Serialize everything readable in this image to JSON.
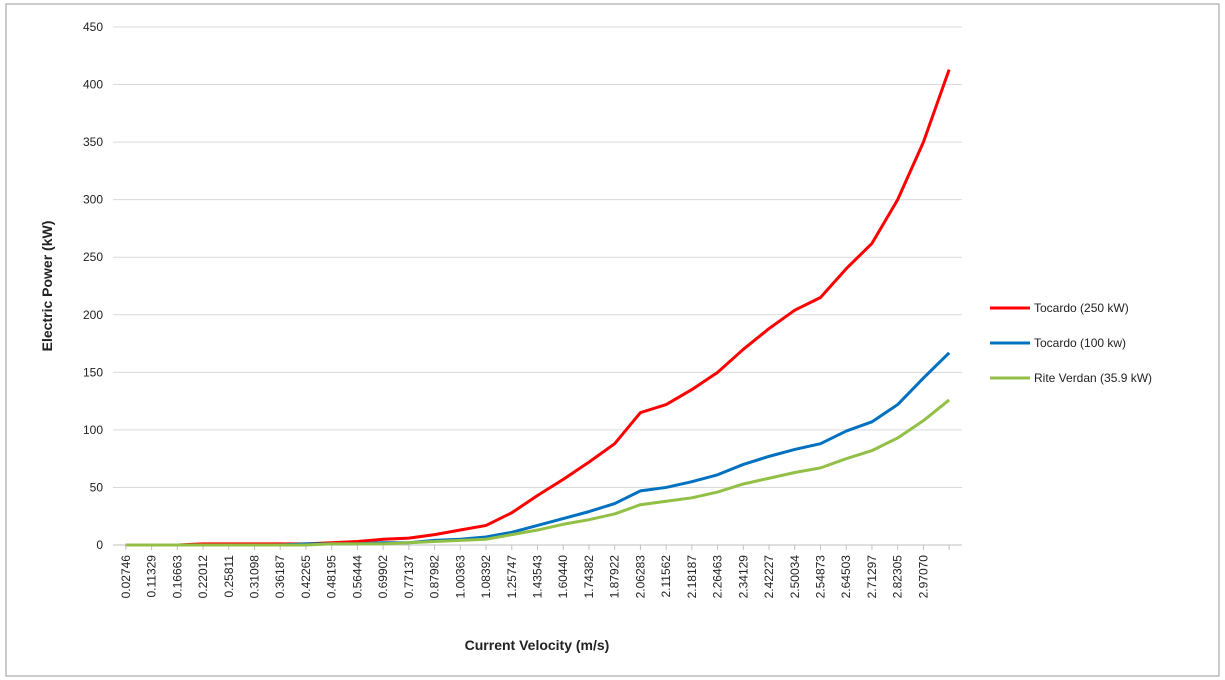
{
  "chart_data": {
    "type": "line",
    "x_label": "Current Velocity (m/s)",
    "y_label": "Electric Power (kW)",
    "categories": [
      "0.02746",
      "0.11329",
      "0.16663",
      "0.22012",
      "0.25811",
      "0.31098",
      "0.36187",
      "0.42265",
      "0.48195",
      "0.56444",
      "0.69902",
      "0.77137",
      "0.87982",
      "1.00363",
      "1.08392",
      "1.25747",
      "1.43543",
      "1.60440",
      "1.74382",
      "1.87922",
      "2.06283",
      "2.11562",
      "2.18187",
      "2.26463",
      "2.34129",
      "2.42227",
      "2.50034",
      "2.54873",
      "2.64503",
      "2.71297",
      "2.82305",
      "2.97070",
      null
    ],
    "series": [
      {
        "name": "Tocardo (250 kW)",
        "color": "#ff0000",
        "values": [
          0,
          0,
          0,
          1,
          1,
          1,
          1,
          1,
          2,
          3,
          5,
          6,
          9,
          13,
          17,
          28,
          43,
          57,
          72,
          88,
          115,
          122,
          135,
          150,
          170,
          188,
          204,
          215,
          240,
          262,
          300,
          350,
          413
        ]
      },
      {
        "name": "Tocardo (100 kw)",
        "color": "#0070c0",
        "values": [
          0,
          0,
          0,
          0,
          0,
          0,
          0,
          1,
          1,
          1,
          2,
          2,
          4,
          5,
          7,
          11,
          17,
          23,
          29,
          36,
          47,
          50,
          55,
          61,
          70,
          77,
          83,
          88,
          99,
          107,
          122,
          145,
          167
        ]
      },
      {
        "name": "Rite Verdan (35.9 kW)",
        "color": "#92c047",
        "values": [
          0,
          0,
          0,
          0,
          0,
          0,
          0,
          0,
          1,
          1,
          1,
          2,
          3,
          4,
          5,
          9,
          13,
          18,
          22,
          27,
          35,
          38,
          41,
          46,
          53,
          58,
          63,
          67,
          75,
          82,
          93,
          108,
          126
        ]
      }
    ],
    "ylim": [
      0,
      450
    ],
    "yticks": [
      0,
      50,
      100,
      150,
      200,
      250,
      300,
      350,
      400,
      450
    ],
    "grid": true,
    "legend": "right"
  }
}
